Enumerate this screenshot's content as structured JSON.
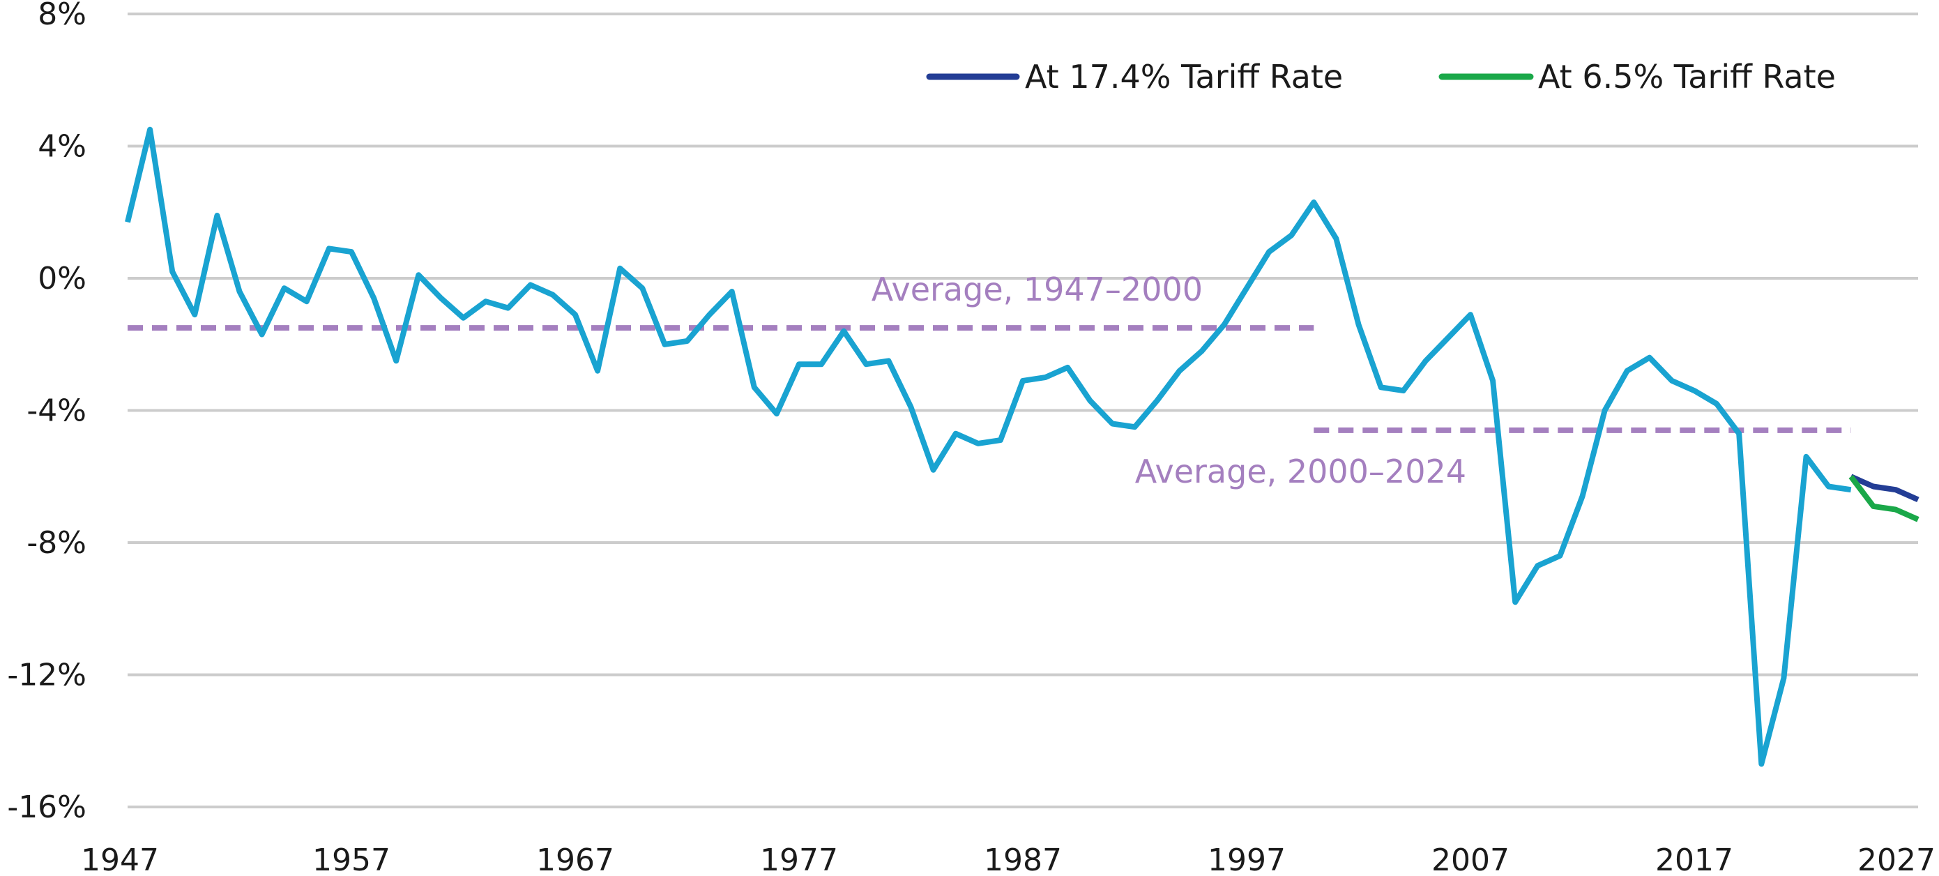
{
  "colors": {
    "history": "#19a3d1",
    "tariff_17_4": "#233d95",
    "tariff_6_5": "#1aa849",
    "average": "#a47fbf",
    "grid": "#cccccc"
  },
  "chart_data": {
    "type": "line",
    "title": "",
    "xlabel": "",
    "ylabel": "",
    "xlim": [
      1947,
      2027
    ],
    "ylim": [
      -16,
      8
    ],
    "x_ticks": [
      1947,
      1957,
      1967,
      1977,
      1987,
      1997,
      2007,
      2017,
      2027
    ],
    "x_tick_labels": [
      "1947",
      "1957",
      "1967",
      "1977",
      "1987",
      "1997",
      "2007",
      "2017",
      "2027"
    ],
    "y_ticks": [
      8,
      4,
      0,
      -4,
      -8,
      -12,
      -16
    ],
    "y_tick_labels": [
      "8%",
      "4%",
      "0%",
      "-4%",
      "-8%",
      "-12%",
      "-16%"
    ],
    "grid": "horizontal",
    "legend_position": "top-right",
    "series": [
      {
        "key": "history",
        "x": [
          1947,
          1948,
          1949,
          1950,
          1951,
          1952,
          1953,
          1954,
          1955,
          1956,
          1957,
          1958,
          1959,
          1960,
          1961,
          1962,
          1963,
          1964,
          1965,
          1966,
          1967,
          1968,
          1969,
          1970,
          1971,
          1972,
          1973,
          1974,
          1975,
          1976,
          1977,
          1978,
          1979,
          1980,
          1981,
          1982,
          1983,
          1984,
          1985,
          1986,
          1987,
          1988,
          1989,
          1990,
          1991,
          1992,
          1993,
          1994,
          1995,
          1996,
          1997,
          1998,
          1999,
          2000,
          2001,
          2002,
          2003,
          2004,
          2005,
          2006,
          2007,
          2008,
          2009,
          2010,
          2011,
          2012,
          2013,
          2014,
          2015,
          2016,
          2017,
          2018,
          2019,
          2020,
          2021,
          2022,
          2023,
          2024
        ],
        "values": [
          1.7,
          4.5,
          0.2,
          -1.1,
          1.9,
          -0.4,
          -1.7,
          -0.3,
          -0.7,
          0.9,
          0.8,
          -0.6,
          -2.5,
          0.1,
          -0.6,
          -1.2,
          -0.7,
          -0.9,
          -0.2,
          -0.5,
          -1.1,
          -2.8,
          0.3,
          -0.3,
          -2.0,
          -1.9,
          -1.1,
          -0.4,
          -3.3,
          -4.1,
          -2.6,
          -2.6,
          -1.6,
          -2.6,
          -2.5,
          -3.9,
          -5.8,
          -4.7,
          -5.0,
          -4.9,
          -3.1,
          -3.0,
          -2.7,
          -3.7,
          -4.4,
          -4.5,
          -3.7,
          -2.8,
          -2.2,
          -1.4,
          -0.3,
          0.8,
          1.3,
          2.3,
          1.2,
          -1.4,
          -3.3,
          -3.4,
          -2.5,
          -1.8,
          -1.1,
          -3.1,
          -9.8,
          -8.7,
          -8.4,
          -6.6,
          -4.0,
          -2.8,
          -2.4,
          -3.1,
          -3.4,
          -3.8,
          -4.7,
          -14.7,
          -12.1,
          -5.4,
          -6.3,
          -6.4
        ]
      },
      {
        "key": "tariff_17_4",
        "name": "At 17.4% Tariff Rate",
        "x": [
          2024,
          2025,
          2026,
          2027
        ],
        "values": [
          -6.0,
          -6.3,
          -6.4,
          -6.7
        ]
      },
      {
        "key": "tariff_6_5",
        "name": "At 6.5% Tariff Rate",
        "x": [
          2024,
          2025,
          2026,
          2027
        ],
        "values": [
          -6.0,
          -6.9,
          -7.0,
          -7.3
        ]
      }
    ],
    "averages": [
      {
        "label": "Average, 1947–2000",
        "from": 1947,
        "to": 2000,
        "value": -1.5
      },
      {
        "label": "Average, 2000–2024",
        "from": 2000,
        "to": 2024,
        "value": -4.6
      }
    ]
  }
}
